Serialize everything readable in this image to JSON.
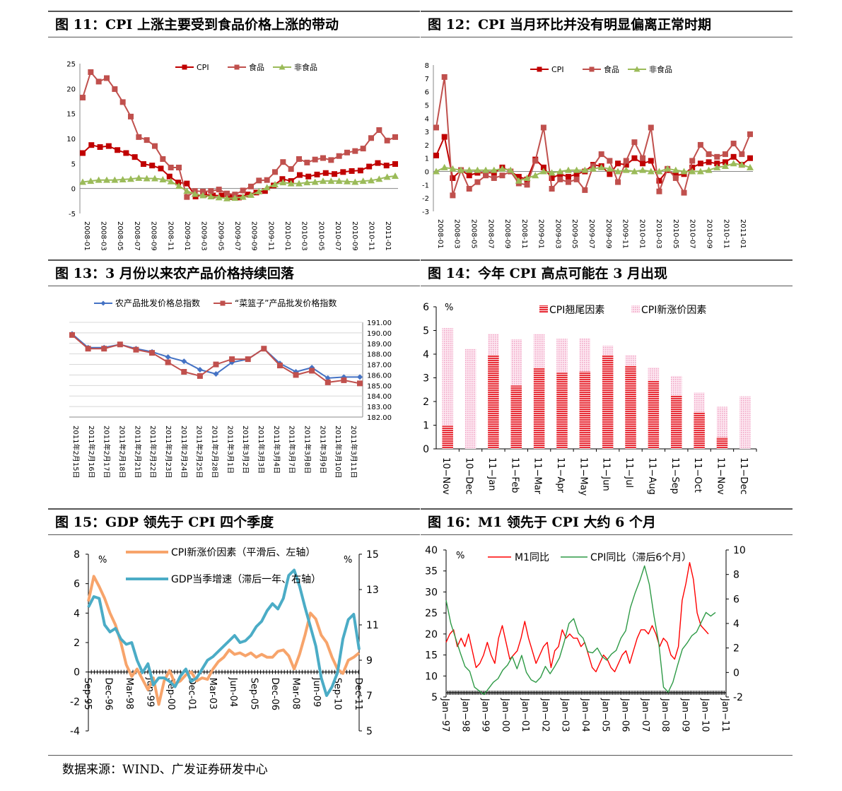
{
  "source": "数据来源：WIND、广发证券研发中心",
  "chart_data": [
    {
      "id": "fig11",
      "type": "line",
      "title": "图  11：CPI 上涨主要受到食品价格上涨的带动",
      "ylim": [
        -5,
        25
      ],
      "yticks": [
        25,
        20,
        15,
        10,
        5,
        0,
        -5
      ],
      "xticklabels": [
        "2008-01",
        "2008-03",
        "2008-05",
        "2008-07",
        "2008-09",
        "2008-11",
        "2009-01",
        "2009-03",
        "2009-05",
        "2009-07",
        "2009-09",
        "2009-11",
        "2010-01",
        "2010-03",
        "2010-05",
        "2010-07",
        "2010-09",
        "2010-11",
        "2011-01"
      ],
      "series": [
        {
          "name": "CPI",
          "color": "#c00000",
          "marker": "square",
          "values": [
            7.1,
            8.7,
            8.3,
            8.5,
            7.7,
            7.1,
            6.3,
            4.9,
            4.6,
            4.0,
            2.4,
            1.2,
            1.0,
            -1.6,
            -1.2,
            -1.4,
            -1.4,
            -1.7,
            -1.8,
            -1.2,
            -0.8,
            -0.5,
            0.6,
            1.9,
            1.5,
            2.7,
            2.4,
            2.8,
            3.1,
            2.9,
            3.3,
            3.5,
            3.6,
            4.4,
            5.1,
            4.6,
            4.9
          ]
        },
        {
          "name": "食品",
          "color": "#c0504d",
          "marker": "square",
          "values": [
            18.2,
            23.3,
            21.4,
            22.1,
            19.9,
            17.3,
            14.4,
            10.3,
            9.7,
            8.5,
            5.9,
            4.2,
            4.2,
            -1.7,
            -0.5,
            -0.6,
            -0.5,
            -0.2,
            -1.0,
            -1.2,
            -0.4,
            0.4,
            1.6,
            1.7,
            3.3,
            5.3,
            3.9,
            5.9,
            5.2,
            5.8,
            6.1,
            5.7,
            6.5,
            7.2,
            7.5,
            8.0,
            10.1,
            11.7,
            9.6,
            10.3
          ]
        },
        {
          "name": "非食品",
          "color": "#9bbb59",
          "marker": "triangle",
          "values": [
            1.3,
            1.5,
            1.7,
            1.7,
            1.7,
            1.8,
            1.9,
            2.1,
            2.0,
            2.0,
            1.8,
            1.4,
            0.5,
            -0.5,
            -1.1,
            -1.4,
            -1.6,
            -1.8,
            -2.0,
            -1.9,
            -1.7,
            -1.3,
            -0.6,
            0.2,
            0.8,
            1.2,
            1.0,
            1.0,
            1.2,
            1.3,
            1.5,
            1.5,
            1.5,
            1.4,
            1.3,
            1.5,
            1.6,
            1.9,
            2.3,
            2.5
          ]
        }
      ]
    },
    {
      "id": "fig12",
      "type": "line",
      "title": "图  12：CPI 当月环比并没有明显偏离正常时期",
      "ylim": [
        -3,
        8
      ],
      "yticks": [
        8,
        7,
        6,
        5,
        4,
        3,
        2,
        1,
        0,
        -1,
        -2,
        -3
      ],
      "xticklabels": [
        "2008-01",
        "2008-03",
        "2008-05",
        "2008-07",
        "2008-09",
        "2008-11",
        "2009-01",
        "2009-03",
        "2009-05",
        "2009-07",
        "2009-09",
        "2009-11",
        "2010-01",
        "2010-03",
        "2010-05",
        "2010-07",
        "2010-09",
        "2010-11",
        "2011-01"
      ],
      "series": [
        {
          "name": "CPI",
          "color": "#c00000",
          "marker": "square",
          "values": [
            1.2,
            2.6,
            -0.5,
            0.1,
            -0.3,
            -0.1,
            -0.1,
            -0.1,
            0.3,
            0.0,
            -0.4,
            -0.6,
            0.9,
            0.3,
            -0.5,
            -0.2,
            -0.4,
            -0.2,
            0.0,
            0.5,
            0.4,
            -0.2,
            0.6,
            0.5,
            1.0,
            0.6,
            0.8,
            -0.7,
            0.1,
            -0.3,
            -0.2,
            0.3,
            0.6,
            0.7,
            0.6,
            0.7,
            1.1,
            0.5,
            1.0
          ]
        },
        {
          "name": "食品",
          "color": "#c0504d",
          "marker": "square",
          "values": [
            3.3,
            7.1,
            -1.8,
            0.1,
            -1.3,
            -0.8,
            -0.3,
            -0.5,
            -0.3,
            0.0,
            -0.9,
            -1.0,
            0.8,
            3.3,
            -1.3,
            -0.6,
            -0.8,
            -0.6,
            -1.4,
            0.4,
            1.3,
            0.8,
            -0.8,
            0.8,
            2.2,
            1.0,
            3.3,
            -1.5,
            0.2,
            -0.5,
            -1.6,
            0.8,
            2.0,
            1.3,
            1.1,
            1.3,
            2.1,
            1.3,
            2.8
          ]
        },
        {
          "name": "非食品",
          "color": "#9bbb59",
          "marker": "triangle",
          "values": [
            0.0,
            0.3,
            0.2,
            0.1,
            0.1,
            0.1,
            0.1,
            0.1,
            0.2,
            0.1,
            -0.7,
            -0.5,
            -0.3,
            0.0,
            -0.1,
            0.0,
            0.1,
            0.1,
            0.1,
            0.2,
            0.3,
            0.2,
            0.0,
            0.1,
            0.0,
            0.1,
            0.0,
            0.0,
            0.2,
            0.1,
            0.0,
            0.0,
            0.0,
            0.1,
            0.3,
            0.4,
            0.6,
            0.5,
            0.3
          ]
        }
      ]
    },
    {
      "id": "fig13",
      "type": "line",
      "title": "图  13：3 月份以来农产品价格持续回落",
      "ylim": [
        182,
        191
      ],
      "yticks": [
        "191.00",
        "190.00",
        "189.00",
        "188.00",
        "187.00",
        "186.00",
        "185.00",
        "184.00",
        "183.00",
        "182.00"
      ],
      "xticklabels": [
        "2011年2月15日",
        "2011年2月16日",
        "2011年2月17日",
        "2011年2月18日",
        "2011年2月21日",
        "2011年2月22日",
        "2011年2月23日",
        "2011年2月24日",
        "2011年2月25日",
        "2011年2月28日",
        "2011年3月1日",
        "2011年3月2日",
        "2011年3月3日",
        "2011年3月4日",
        "2011年3月7日",
        "2011年3月8日",
        "2011年3月9日",
        "2011年3月10日",
        "2011年3月11日"
      ],
      "series": [
        {
          "name": "农产品批发价格总指数",
          "color": "#4472c4",
          "marker": "diamond",
          "values": [
            189.9,
            188.6,
            188.6,
            188.9,
            188.5,
            188.2,
            187.7,
            187.3,
            186.5,
            186.1,
            187.2,
            187.5,
            188.5,
            187.1,
            186.3,
            186.7,
            185.7,
            185.8,
            185.8
          ]
        },
        {
          "name": "“菜篮子”产品批发价格指数",
          "color": "#c0504d",
          "marker": "square",
          "values": [
            189.8,
            188.5,
            188.5,
            188.9,
            188.4,
            188.1,
            187.2,
            186.3,
            185.9,
            187.0,
            187.5,
            187.5,
            188.5,
            186.9,
            186.0,
            186.4,
            185.3,
            185.5,
            185.2
          ]
        }
      ]
    },
    {
      "id": "fig14",
      "type": "bar",
      "title": "图  14：今年 CPI 高点可能在 3 月出现",
      "ylabel": "%",
      "ylim": [
        0,
        6
      ],
      "yticks": [
        6,
        5,
        4,
        3,
        2,
        1,
        0
      ],
      "categories": [
        "10−Nov",
        "10−Dec",
        "11−Jan",
        "11−Feb",
        "11−Mar",
        "11−Apr",
        "11−May",
        "11−Jun",
        "11−Jul",
        "11−Aug",
        "11−Sep",
        "11−Oct",
        "11−Nov",
        "11−Dec"
      ],
      "series": [
        {
          "name": "CPI翘尾因素",
          "color": "#e8303a",
          "values": [
            0.98,
            0.0,
            3.97,
            2.68,
            3.43,
            3.22,
            3.27,
            3.96,
            3.52,
            2.89,
            2.26,
            1.56,
            0.49,
            0.0
          ]
        },
        {
          "name": "CPI新涨价因素",
          "color": "#f2a8c8",
          "values": [
            4.12,
            4.22,
            0.89,
            1.95,
            1.42,
            1.43,
            1.39,
            0.4,
            0.44,
            0.55,
            0.82,
            0.82,
            1.29,
            2.22
          ]
        }
      ]
    },
    {
      "id": "fig15",
      "type": "line",
      "title": "图  15：GDP 领先于 CPI  四个季度",
      "ylabel_left": "%",
      "ylabel_right": "%",
      "ylim_left": [
        -4,
        8
      ],
      "ylim_right": [
        5,
        15
      ],
      "yticks_left": [
        8,
        6,
        4,
        2,
        0,
        -2,
        -4
      ],
      "yticks_right": [
        15,
        13,
        11,
        9,
        7,
        5
      ],
      "xticklabels": [
        "Sep-95",
        "Dec-96",
        "Mar-98",
        "Jun-99",
        "Sep-00",
        "Dec-01",
        "Mar-03",
        "Jun-04",
        "Sep-05",
        "Dec-06",
        "Mar-08",
        "Jun-09",
        "Sep-10",
        "Dec-11"
      ],
      "series": [
        {
          "name": "CPI新涨价因素（平滑后、左轴）",
          "color": "#f7a46b",
          "axis": "left",
          "values": [
            4.8,
            6.5,
            5.8,
            5.0,
            4.0,
            3.2,
            2.0,
            0.5,
            -0.3,
            0.2,
            -0.5,
            -1.2,
            -0.4,
            -2.2,
            -0.6,
            0.1,
            -0.8,
            -0.6,
            -0.2,
            0.0,
            -0.6,
            -0.4,
            -0.5,
            0.2,
            0.7,
            1.0,
            1.5,
            1.2,
            1.3,
            1.1,
            1.3,
            1.0,
            1.2,
            1.0,
            1.0,
            1.4,
            1.5,
            1.1,
            0.2,
            1.2,
            2.5,
            4.0,
            3.6,
            2.5,
            2.0,
            1.0,
            0.2,
            -0.1,
            0.8,
            1.0,
            1.3
          ]
        },
        {
          "name": "GDP当季增速（滞后一年、右轴）",
          "color": "#4bacc6",
          "axis": "right",
          "values": [
            12.0,
            12.6,
            12.5,
            11.0,
            10.6,
            10.8,
            10.2,
            9.9,
            10.0,
            9.0,
            8.3,
            8.8,
            7.6,
            8.0,
            8.0,
            7.8,
            7.5,
            8.1,
            8.5,
            7.8,
            8.0,
            8.5,
            9.0,
            9.2,
            9.5,
            9.8,
            10.1,
            10.4,
            10.0,
            10.1,
            10.4,
            10.9,
            11.2,
            11.8,
            12.2,
            11.9,
            12.5,
            13.8,
            14.1,
            13.2,
            12.0,
            10.9,
            9.8,
            8.0,
            7.0,
            7.5,
            8.3,
            10.2,
            11.3,
            11.6,
            9.6
          ]
        }
      ]
    },
    {
      "id": "fig16",
      "type": "line",
      "title": "图  16：M1 领先于 CPI 大约 6 个月",
      "ylabel_left": "%",
      "ylim_left": [
        5,
        40
      ],
      "ylim_right": [
        -2,
        10
      ],
      "yticks_left": [
        40,
        35,
        30,
        25,
        20,
        15,
        10,
        5
      ],
      "yticks_right": [
        10,
        8,
        6,
        4,
        2,
        0,
        -2
      ],
      "xticklabels": [
        "Jan−97",
        "Jan−98",
        "Jan−99",
        "Jan−00",
        "Jan−01",
        "Jan−02",
        "Jan−03",
        "Jan−04",
        "Jan−05",
        "Jan−06",
        "Jan−07",
        "Jan−08",
        "Jan−09",
        "Jan−10",
        "Jan−11"
      ],
      "series": [
        {
          "name": "M1同比",
          "color": "#ff0000",
          "axis": "left",
          "values": [
            18,
            20,
            21,
            17,
            19,
            17,
            20,
            16,
            12,
            13,
            15,
            18,
            15,
            13,
            19,
            22,
            18,
            14,
            15,
            16,
            19,
            23,
            19,
            16,
            13,
            15,
            17,
            18,
            12,
            16,
            17,
            21,
            19,
            20,
            19,
            19,
            17,
            18,
            15,
            12,
            11,
            13,
            15,
            14,
            12,
            11,
            13,
            15,
            16,
            13,
            16,
            19,
            21,
            21,
            20,
            22,
            20,
            17,
            19,
            18,
            15,
            14,
            17,
            28,
            32,
            37,
            33,
            25,
            22,
            21,
            20
          ]
        },
        {
          "name": "CPI同比（滞后6个月）",
          "color": "#2e9a46",
          "axis": "right",
          "values": [
            5.9,
            4.0,
            2.8,
            1.6,
            0.5,
            0.1,
            -1.2,
            -1.5,
            -1.8,
            -1.3,
            -0.8,
            -0.5,
            0.2,
            0.6,
            1.3,
            0.3,
            1.4,
            0.0,
            -0.6,
            -0.8,
            -0.4,
            0.5,
            -0.1,
            0.5,
            1.2,
            2.5,
            4.0,
            4.4,
            3.2,
            2.8,
            1.7,
            1.6,
            2.0,
            1.3,
            1.0,
            1.5,
            1.8,
            2.8,
            3.4,
            5.3,
            6.5,
            7.5,
            8.7,
            7.2,
            4.6,
            2.4,
            -1.2,
            -1.6,
            -0.8,
            0.6,
            1.9,
            2.4,
            3.0,
            3.3,
            4.1,
            4.9,
            4.6,
            4.9
          ]
        }
      ]
    }
  ]
}
